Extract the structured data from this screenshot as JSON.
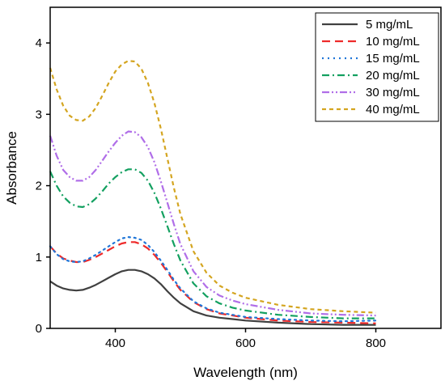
{
  "chart_data": {
    "type": "line",
    "title": "",
    "xlabel": "Wavelength (nm)",
    "ylabel": "Absorbance",
    "xlim": [
      300,
      900
    ],
    "ylim": [
      0,
      4.5
    ],
    "xticks": [
      400,
      600,
      800
    ],
    "yticks": [
      0,
      1,
      2,
      3,
      4
    ],
    "grid": false,
    "legend": "top-right",
    "series": [
      {
        "name": "5 mg/mL",
        "color": "#404040",
        "dash": "solid",
        "x": [
          300,
          310,
          320,
          330,
          340,
          350,
          360,
          370,
          380,
          390,
          400,
          410,
          420,
          430,
          440,
          450,
          460,
          470,
          480,
          490,
          500,
          520,
          540,
          560,
          580,
          600,
          650,
          700,
          750,
          800
        ],
        "y": [
          0.66,
          0.6,
          0.56,
          0.54,
          0.53,
          0.54,
          0.57,
          0.61,
          0.66,
          0.71,
          0.76,
          0.8,
          0.82,
          0.82,
          0.8,
          0.76,
          0.7,
          0.62,
          0.52,
          0.43,
          0.35,
          0.24,
          0.18,
          0.15,
          0.13,
          0.11,
          0.08,
          0.06,
          0.05,
          0.05
        ]
      },
      {
        "name": "10 mg/mL",
        "color": "#ee2a2a",
        "dash": "long-dash",
        "x": [
          300,
          310,
          320,
          330,
          340,
          350,
          360,
          370,
          380,
          390,
          400,
          410,
          420,
          430,
          440,
          450,
          460,
          470,
          480,
          490,
          500,
          520,
          540,
          560,
          580,
          600,
          650,
          700,
          750,
          800
        ],
        "y": [
          1.15,
          1.05,
          0.98,
          0.95,
          0.93,
          0.93,
          0.96,
          1.0,
          1.05,
          1.1,
          1.15,
          1.19,
          1.21,
          1.21,
          1.18,
          1.12,
          1.03,
          0.92,
          0.79,
          0.66,
          0.54,
          0.37,
          0.27,
          0.21,
          0.18,
          0.15,
          0.11,
          0.09,
          0.08,
          0.07
        ]
      },
      {
        "name": "15 mg/mL",
        "color": "#2076d8",
        "dash": "dot",
        "x": [
          300,
          310,
          320,
          330,
          340,
          350,
          360,
          370,
          380,
          390,
          400,
          410,
          420,
          430,
          440,
          450,
          460,
          470,
          480,
          490,
          500,
          520,
          540,
          560,
          580,
          600,
          650,
          700,
          750,
          800
        ],
        "y": [
          1.15,
          1.04,
          0.97,
          0.94,
          0.93,
          0.94,
          0.98,
          1.03,
          1.09,
          1.15,
          1.21,
          1.26,
          1.28,
          1.27,
          1.24,
          1.17,
          1.07,
          0.95,
          0.82,
          0.68,
          0.56,
          0.38,
          0.28,
          0.22,
          0.19,
          0.16,
          0.13,
          0.11,
          0.1,
          0.11
        ]
      },
      {
        "name": "20 mg/mL",
        "color": "#13a060",
        "dash": "dash-dot",
        "x": [
          300,
          310,
          320,
          330,
          340,
          350,
          360,
          370,
          380,
          390,
          400,
          410,
          420,
          430,
          440,
          450,
          460,
          470,
          480,
          490,
          500,
          520,
          540,
          560,
          580,
          600,
          650,
          700,
          750,
          800
        ],
        "y": [
          2.2,
          2.0,
          1.85,
          1.76,
          1.71,
          1.7,
          1.74,
          1.82,
          1.92,
          2.03,
          2.12,
          2.19,
          2.23,
          2.23,
          2.18,
          2.07,
          1.9,
          1.68,
          1.43,
          1.18,
          0.95,
          0.63,
          0.45,
          0.35,
          0.29,
          0.25,
          0.19,
          0.16,
          0.14,
          0.14
        ]
      },
      {
        "name": "30 mg/mL",
        "color": "#b06ee8",
        "dash": "dash-dot-dot",
        "x": [
          300,
          310,
          320,
          330,
          340,
          350,
          360,
          370,
          380,
          390,
          400,
          410,
          420,
          430,
          440,
          450,
          460,
          470,
          480,
          490,
          500,
          520,
          540,
          560,
          580,
          600,
          650,
          700,
          750,
          800
        ],
        "y": [
          2.7,
          2.42,
          2.22,
          2.12,
          2.07,
          2.07,
          2.12,
          2.22,
          2.35,
          2.48,
          2.6,
          2.7,
          2.76,
          2.75,
          2.68,
          2.54,
          2.33,
          2.06,
          1.76,
          1.46,
          1.18,
          0.8,
          0.58,
          0.46,
          0.39,
          0.34,
          0.26,
          0.21,
          0.19,
          0.18
        ]
      },
      {
        "name": "40 mg/mL",
        "color": "#d4a520",
        "dash": "short-dash",
        "x": [
          300,
          310,
          320,
          330,
          340,
          350,
          360,
          370,
          380,
          390,
          400,
          410,
          420,
          430,
          440,
          450,
          460,
          470,
          480,
          490,
          500,
          520,
          540,
          560,
          580,
          600,
          650,
          700,
          750,
          800
        ],
        "y": [
          3.65,
          3.35,
          3.12,
          2.98,
          2.92,
          2.91,
          2.97,
          3.09,
          3.26,
          3.44,
          3.6,
          3.7,
          3.75,
          3.74,
          3.64,
          3.44,
          3.16,
          2.8,
          2.38,
          1.97,
          1.6,
          1.08,
          0.78,
          0.6,
          0.5,
          0.43,
          0.33,
          0.27,
          0.24,
          0.22
        ]
      }
    ]
  }
}
